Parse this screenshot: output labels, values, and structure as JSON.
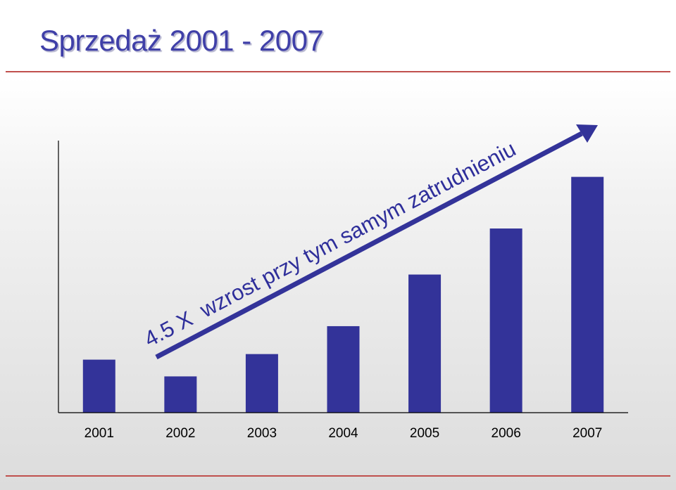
{
  "slide": {
    "title": "Sprzedaż 2001 - 2007"
  },
  "colors": {
    "bar": "#333399",
    "title": "#3f3fa8",
    "rule": "#c0504d",
    "axis": "#000000"
  },
  "chart_data": {
    "type": "bar",
    "title": "",
    "xlabel": "",
    "ylabel": "",
    "categories": [
      "2001",
      "2002",
      "2003",
      "2004",
      "2005",
      "2006",
      "2007"
    ],
    "values": [
      76,
      52,
      84,
      124,
      198,
      264,
      338
    ],
    "ylim": [
      0,
      390
    ],
    "grid": false,
    "legend": "none",
    "annotation": {
      "text": "4.5 X  wzrost przy tym samym zatrudnieniu",
      "arrow": {
        "from_category": "2002",
        "to_category": "2007",
        "direction": "up-right"
      }
    }
  }
}
